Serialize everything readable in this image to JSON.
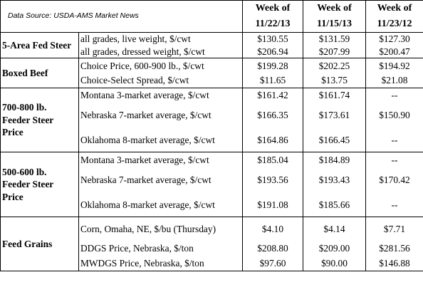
{
  "source_label": "Data Source: USDA-AMS Market News",
  "headers": [
    {
      "line1": "Week of",
      "line2": "11/22/13"
    },
    {
      "line1": "Week of",
      "line2": "11/15/13"
    },
    {
      "line1": "Week of",
      "line2": "11/23/12"
    }
  ],
  "groups": [
    {
      "category": "5-Area Fed Steer",
      "rows": [
        {
          "desc": "all grades, live weight, $/cwt",
          "v1": "$130.55",
          "v2": "$131.59",
          "v3": "$127.30"
        },
        {
          "desc": "all grades, dressed weight, $/cwt",
          "v1": "$206.94",
          "v2": "$207.99",
          "v3": "$200.47"
        }
      ]
    },
    {
      "category": "Boxed Beef",
      "rows": [
        {
          "desc": "Choice Price, 600-900 lb., $/cwt",
          "v1": "$199.28",
          "v2": "$202.25",
          "v3": "$194.92"
        },
        {
          "desc": "Choice-Select Spread, $/cwt",
          "v1": "$11.65",
          "v2": "$13.75",
          "v3": "$21.08"
        }
      ]
    },
    {
      "category": "700-800 lb. Feeder Steer Price",
      "rows": [
        {
          "desc": "Montana 3-market average, $/cwt",
          "v1": "$161.42",
          "v2": "$161.74",
          "v3": "--"
        },
        {
          "desc": "Nebraska 7-market average, $/cwt",
          "v1": "$166.35",
          "v2": "$173.61",
          "v3": "$150.90"
        },
        {
          "desc": "Oklahoma 8-market average, $/cwt",
          "v1": "$164.86",
          "v2": "$166.45",
          "v3": "--"
        }
      ]
    },
    {
      "category": "500-600 lb. Feeder Steer Price",
      "rows": [
        {
          "desc": "Montana 3-market average, $/cwt",
          "v1": "$185.04",
          "v2": "$184.89",
          "v3": "--"
        },
        {
          "desc": "Nebraska 7-market average, $/cwt",
          "v1": "$193.56",
          "v2": "$193.43",
          "v3": "$170.42"
        },
        {
          "desc": "Oklahoma 8-market average, $/cwt",
          "v1": "$191.08",
          "v2": "$185.66",
          "v3": "--"
        }
      ]
    },
    {
      "category": "Feed Grains",
      "rows": [
        {
          "desc": "Corn, Omaha, NE, $/bu (Thursday)",
          "v1": "$4.10",
          "v2": "$4.14",
          "v3": "$7.71"
        },
        {
          "desc": "DDGS Price, Nebraska, $/ton",
          "v1": "$208.80",
          "v2": "$209.00",
          "v3": "$281.56"
        },
        {
          "desc": "MWDGS Price, Nebraska, $/ton",
          "v1": "$97.60",
          "v2": "$90.00",
          "v3": "$146.88"
        }
      ]
    }
  ]
}
